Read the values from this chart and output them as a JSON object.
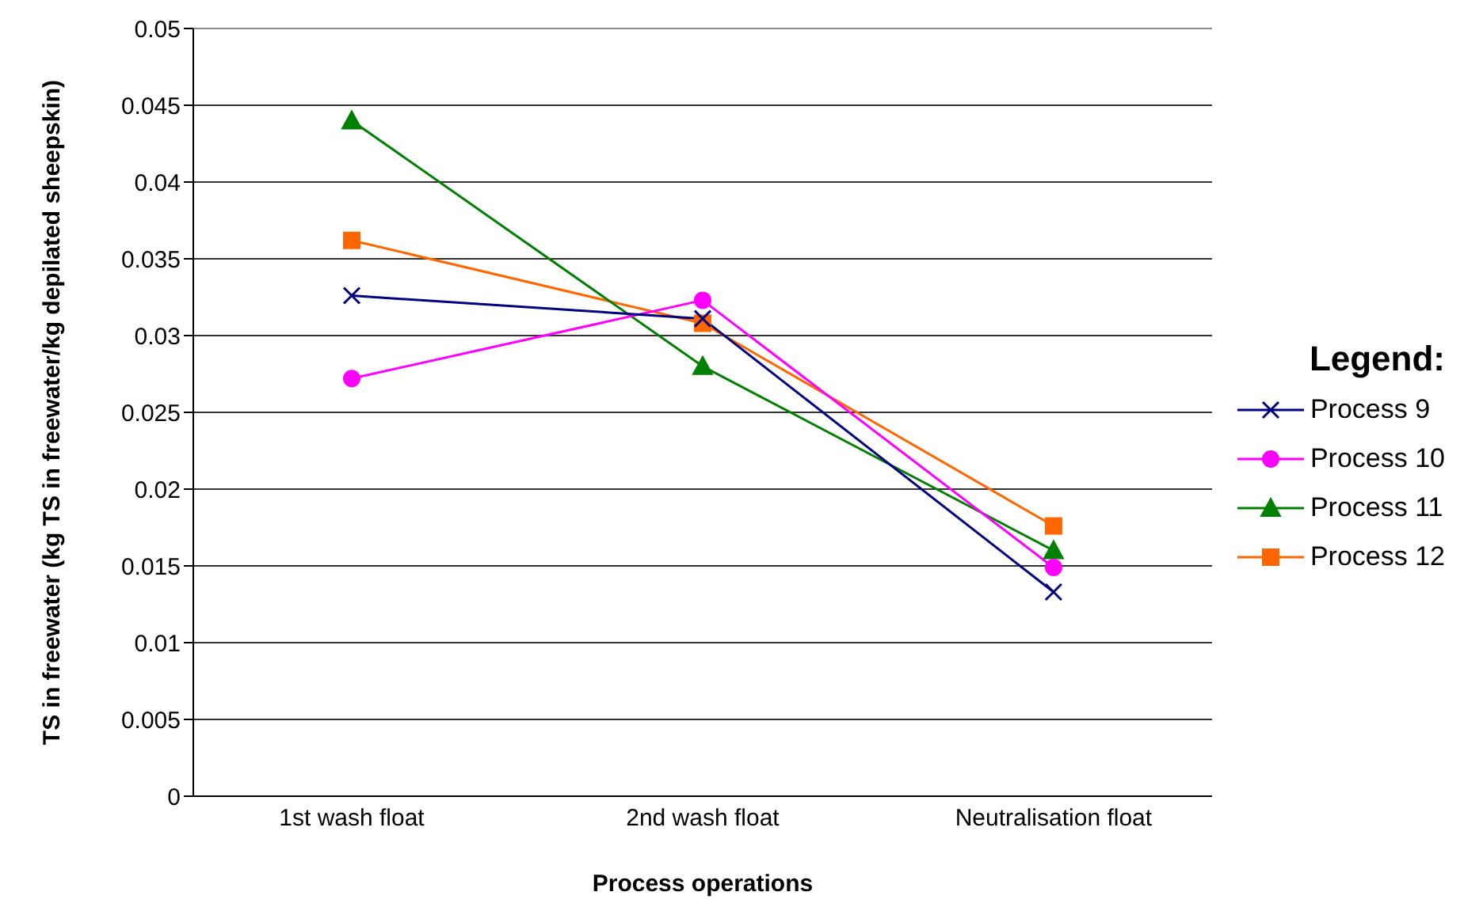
{
  "chart_data": {
    "type": "line",
    "xlabel": "Process operations",
    "ylabel": "TS in freewater (kg TS in freewater/kg depilated sheepskin)",
    "legend_title": "Legend:",
    "categories": [
      "1st wash float",
      "2nd wash float",
      "Neutralisation float"
    ],
    "series": [
      {
        "name": "Process 9",
        "color": "#000080",
        "marker": "cross",
        "values": [
          0.0326,
          0.0311,
          0.0133
        ]
      },
      {
        "name": "Process 10",
        "color": "#ff00ff",
        "marker": "circle",
        "values": [
          0.0272,
          0.0323,
          0.0149
        ]
      },
      {
        "name": "Process 11",
        "color": "#008000",
        "marker": "triangle",
        "values": [
          0.044,
          0.028,
          0.016
        ]
      },
      {
        "name": "Process 12",
        "color": "#ff6600",
        "marker": "square",
        "values": [
          0.0362,
          0.0308,
          0.0176
        ]
      }
    ],
    "ylim": [
      0,
      0.05
    ],
    "yticks": [
      0,
      0.005,
      0.01,
      0.015,
      0.02,
      0.025,
      0.03,
      0.035,
      0.04,
      0.045,
      0.05
    ],
    "grid": "y",
    "legend": "right"
  }
}
